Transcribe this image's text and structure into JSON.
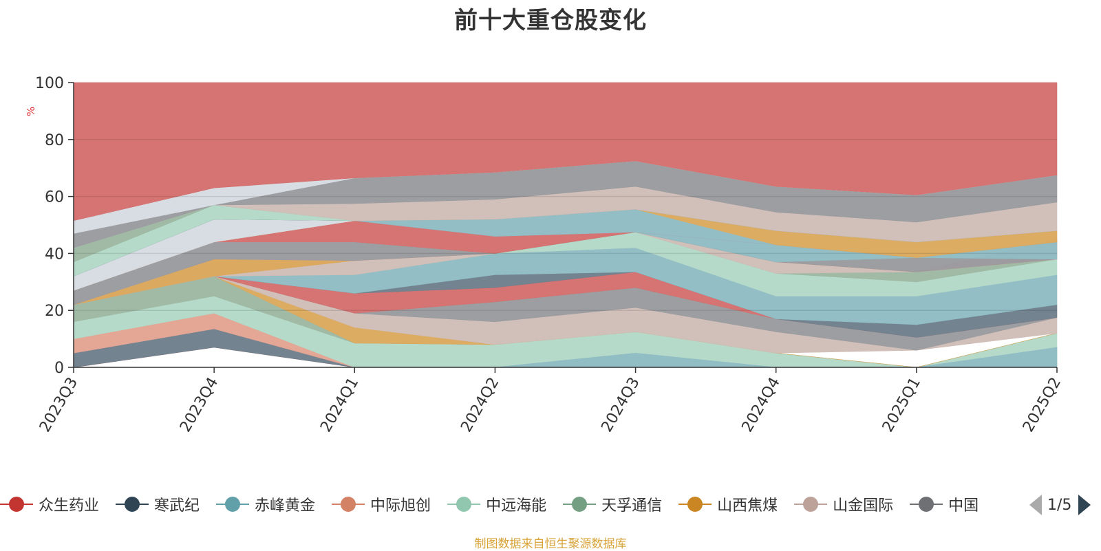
{
  "chart_data": {
    "type": "area",
    "title": "前十大重仓股变化",
    "xlabel": "",
    "ylabel": "%",
    "ylim": [
      0,
      100
    ],
    "yticks": [
      "0",
      "20",
      "40",
      "60",
      "80",
      "100"
    ],
    "categories": [
      "2023Q3",
      "2023Q4",
      "2024Q1",
      "2024Q2",
      "2024Q3",
      "2024Q4",
      "2025Q1",
      "2025Q2"
    ],
    "grid": true,
    "legend_position": "bottom",
    "series_note": "Overlapping (non-stacked) area series; each band is drawn from its lower to upper value",
    "bands": [
      {
        "color": "#d4706e",
        "lower": [
          0,
          7,
          0,
          0,
          0,
          0,
          0,
          0
        ],
        "upper": [
          0,
          7,
          0,
          0,
          0,
          0,
          0,
          0
        ]
      },
      {
        "color": "#6f7f8c",
        "lower": [
          0,
          7,
          0,
          0,
          0,
          0,
          0,
          0
        ],
        "upper": [
          5,
          13.5,
          0,
          0,
          0,
          0,
          0,
          0
        ]
      },
      {
        "color": "#e3a392",
        "lower": [
          5,
          13.5,
          0,
          0,
          0,
          0,
          0,
          0
        ],
        "upper": [
          10,
          19,
          0,
          0,
          0,
          0,
          0,
          0
        ]
      },
      {
        "color": "#b3d9c7",
        "lower": [
          10,
          19,
          0,
          0,
          0,
          0,
          0,
          0
        ],
        "upper": [
          16,
          25,
          8.5,
          8,
          12.5,
          5,
          0,
          12
        ]
      },
      {
        "color": "#8fbcc4",
        "lower": [
          0,
          0,
          0,
          0,
          0,
          0,
          0,
          0
        ],
        "upper": [
          0,
          0,
          0,
          0,
          5,
          0,
          0,
          7
        ]
      },
      {
        "color": "#9db8a3",
        "lower": [
          16,
          25,
          8.5,
          8,
          12.5,
          5,
          0,
          12
        ],
        "upper": [
          22,
          32,
          8.5,
          8,
          12.5,
          5,
          0,
          12
        ]
      },
      {
        "color": "#dba95e",
        "lower": [
          22,
          32,
          8.5,
          8,
          12.5,
          5,
          0,
          12
        ],
        "upper": [
          22,
          32,
          14,
          8,
          12.5,
          5,
          0,
          12
        ]
      },
      {
        "color": "#d0bdb7",
        "lower": [
          22,
          32,
          14,
          8,
          12.5,
          5,
          6,
          12
        ],
        "upper": [
          22,
          32,
          19,
          16,
          21,
          12.5,
          6,
          17.5
        ]
      },
      {
        "color": "#9a9b9f",
        "lower": [
          22,
          32,
          19,
          16,
          21,
          12.5,
          6,
          17.5
        ],
        "upper": [
          22,
          32,
          19,
          23,
          28,
          17,
          10.5,
          17.5
        ]
      },
      {
        "color": "#d4706e",
        "lower": [
          22,
          32,
          19,
          23,
          28,
          17,
          10.5,
          17.5
        ],
        "upper": [
          22,
          32,
          26,
          28,
          33.5,
          17,
          10.5,
          17.5
        ]
      },
      {
        "color": "#6f7f8c",
        "lower": [
          22,
          32,
          26,
          28,
          33.5,
          17,
          10.5,
          17.5
        ],
        "upper": [
          22,
          32,
          26,
          32.5,
          33.5,
          17,
          15,
          22
        ]
      },
      {
        "color": "#8fbcc4",
        "lower": [
          22,
          32,
          26,
          32.5,
          33.5,
          17,
          15,
          22
        ],
        "upper": [
          22,
          32,
          32.5,
          40,
          42,
          25,
          25,
          32.5
        ]
      },
      {
        "color": "#b3d9c7",
        "lower": [
          22,
          32,
          32.5,
          40,
          42,
          25,
          25,
          32.5
        ],
        "upper": [
          22,
          32,
          32.5,
          40,
          47.5,
          33,
          30,
          38
        ]
      },
      {
        "color": "#9db8a3",
        "lower": [
          22,
          32,
          32.5,
          40,
          47.5,
          33,
          30,
          38
        ],
        "upper": [
          22,
          32,
          32.5,
          40,
          47.5,
          33,
          33.5,
          38
        ]
      },
      {
        "color": "#d0bdb7",
        "lower": [
          22,
          32,
          32.5,
          40,
          47.5,
          33,
          33.5,
          38
        ],
        "upper": [
          22,
          32,
          37.5,
          40,
          47.5,
          37,
          33.5,
          38
        ]
      },
      {
        "color": "#e3a392",
        "lower": [
          22,
          32,
          37.5,
          40,
          47.5,
          37,
          33.5,
          38
        ],
        "upper": [
          22,
          38,
          37.5,
          40,
          47.5,
          37,
          33.5,
          38
        ]
      },
      {
        "color": "#dba95e",
        "lower": [
          22,
          32,
          37.5,
          40,
          47.5,
          37,
          33.5,
          38
        ],
        "upper": [
          22,
          38,
          37.5,
          40,
          47.5,
          37,
          33.5,
          38
        ]
      },
      {
        "color": "#e3a392",
        "lower": [
          22,
          38,
          37.5,
          40,
          47.5,
          37,
          33.5,
          38
        ],
        "upper": [
          22,
          38,
          37.5,
          40,
          47.5,
          37,
          33.5,
          45
        ]
      },
      {
        "color": "#9a9b9f",
        "lower": [
          22,
          38,
          37.5,
          40,
          47.5,
          37,
          33.5,
          38
        ],
        "upper": [
          27,
          44,
          44,
          40,
          47.5,
          37,
          38.5,
          38
        ]
      },
      {
        "color": "#8fbcc4",
        "lower": [
          27,
          44,
          44,
          40,
          47.5,
          37,
          38.5,
          38
        ],
        "upper": [
          27,
          44,
          44,
          40,
          47.5,
          43,
          38.5,
          44
        ]
      },
      {
        "color": "#d4706e",
        "lower": [
          27,
          44,
          44,
          40,
          47.5,
          43,
          38.5,
          44
        ],
        "upper": [
          27,
          44,
          51.5,
          46,
          47.5,
          43,
          38.5,
          44
        ]
      },
      {
        "color": "#8fbcc4",
        "lower": [
          27,
          44,
          51.5,
          46,
          47.5,
          43,
          38.5,
          44
        ],
        "upper": [
          27,
          44,
          51.5,
          52,
          55.5,
          43,
          38.5,
          44
        ]
      },
      {
        "color": "#dba95e",
        "lower": [
          27,
          44,
          51.5,
          52,
          55.5,
          43,
          38.5,
          44
        ],
        "upper": [
          27,
          44,
          51.5,
          52,
          55.5,
          48,
          44,
          48
        ]
      },
      {
        "color": "#d7dce3",
        "lower": [
          27,
          44,
          51.5,
          52,
          55.5,
          48,
          44,
          48
        ],
        "upper": [
          32,
          52,
          51.5,
          52,
          55.5,
          48,
          44,
          48
        ]
      },
      {
        "color": "#2f4554",
        "lower": [
          32,
          52,
          51.5,
          52,
          55.5,
          48,
          44,
          48
        ],
        "upper": [
          32,
          52,
          51.5,
          52,
          55.5,
          48,
          44,
          48
        ]
      },
      {
        "color": "#b3d9c7",
        "lower": [
          32,
          52,
          51.5,
          52,
          55.5,
          48,
          44,
          48
        ],
        "upper": [
          37,
          57,
          51.5,
          52,
          55.5,
          48,
          44,
          48
        ]
      },
      {
        "color": "#9db8a3",
        "lower": [
          37,
          57,
          51.5,
          52,
          55.5,
          48,
          44,
          48
        ],
        "upper": [
          42,
          57,
          51.5,
          52,
          55.5,
          48,
          44,
          48
        ]
      },
      {
        "color": "#d0bdb7",
        "lower": [
          42,
          57,
          51.5,
          52,
          55.5,
          48,
          44,
          48
        ],
        "upper": [
          42,
          57,
          57.5,
          59,
          63.5,
          54.5,
          51,
          58
        ]
      },
      {
        "color": "#9a9b9f",
        "lower": [
          42,
          57,
          57.5,
          59,
          63.5,
          54.5,
          51,
          58
        ],
        "upper": [
          47,
          57,
          66.5,
          68.5,
          72.5,
          63.5,
          60.5,
          67.5
        ]
      },
      {
        "color": "#d7dce3",
        "lower": [
          47,
          57,
          66.5,
          68.5,
          72.5,
          63.5,
          60.5,
          67.5
        ],
        "upper": [
          51.5,
          63,
          66.5,
          68.5,
          72.5,
          63.5,
          60.5,
          67.5
        ]
      },
      {
        "color": "#d4706e",
        "lower": [
          51.5,
          63,
          66.5,
          68.5,
          72.5,
          63.5,
          60.5,
          67.5
        ],
        "upper": [
          100,
          100,
          100,
          100,
          100,
          100,
          100,
          100
        ]
      }
    ]
  },
  "legend": {
    "items": [
      {
        "label": "众生药业",
        "color": "#c23531"
      },
      {
        "label": "寒武纪",
        "color": "#2f4554"
      },
      {
        "label": "赤峰黄金",
        "color": "#61a0a8"
      },
      {
        "label": "中际旭创",
        "color": "#d48265"
      },
      {
        "label": "中远海能",
        "color": "#91c7ae"
      },
      {
        "label": "天孚通信",
        "color": "#749f83"
      },
      {
        "label": "山西焦煤",
        "color": "#ca8622"
      },
      {
        "label": "山金国际",
        "color": "#bda29a"
      },
      {
        "label": "中国",
        "color": "#6e7074"
      }
    ],
    "page": "1/5"
  },
  "source": "制图数据来自恒生聚源数据库"
}
